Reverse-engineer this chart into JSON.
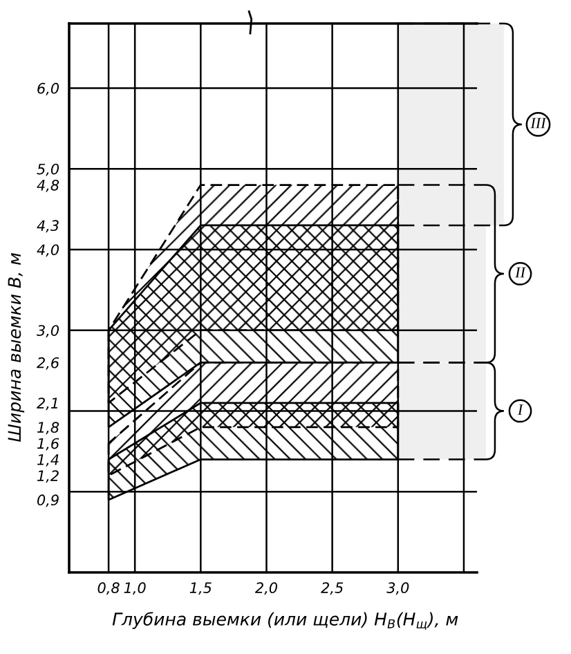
{
  "chart_data": {
    "type": "line",
    "xlabel": "Глубина выемки (или щели) H$_{В}$(H$_{щ}$), м",
    "ylabel": "Ширина выемки B, м",
    "xlim": [
      0.5,
      3.6
    ],
    "ylim": [
      0,
      6.8
    ],
    "xticks": [
      {
        "value": 0.8,
        "label": "0,8"
      },
      {
        "value": 1.0,
        "label": "1,0"
      },
      {
        "value": 1.5,
        "label": "1,5"
      },
      {
        "value": 2.0,
        "label": "2,0"
      },
      {
        "value": 2.5,
        "label": "2,5"
      },
      {
        "value": 3.0,
        "label": "3,0"
      },
      {
        "value": 3.5,
        "label": null
      }
    ],
    "yticks": [
      {
        "value": 0.9,
        "label": "0,9"
      },
      {
        "value": 1.2,
        "label": "1,2"
      },
      {
        "value": 1.4,
        "label": "1,4"
      },
      {
        "value": 1.6,
        "label": "1,6"
      },
      {
        "value": 1.8,
        "label": "1,8"
      },
      {
        "value": 2.1,
        "label": "2,1"
      },
      {
        "value": 2.6,
        "label": "2,6"
      },
      {
        "value": 3.0,
        "label": "3,0"
      },
      {
        "value": 4.0,
        "label": "4,0"
      },
      {
        "value": 4.3,
        "label": "4,3"
      },
      {
        "value": 4.8,
        "label": "4,8"
      },
      {
        "value": 5.0,
        "label": "5,0"
      },
      {
        "value": 6.0,
        "label": "6,0"
      }
    ],
    "grid": "x",
    "ref_lines": [
      {
        "axis": "y",
        "value": 1.0
      },
      {
        "axis": "y",
        "value": 2.0
      },
      {
        "axis": "y",
        "value": 3.0
      },
      {
        "axis": "y",
        "value": 4.0
      },
      {
        "axis": "y",
        "value": 5.0
      },
      {
        "axis": "y",
        "value": 6.0
      }
    ],
    "bands": [
      {
        "axis": "y",
        "from": 1.4,
        "to": 2.6,
        "label": "I",
        "color": "#efefef"
      },
      {
        "axis": "y",
        "from": 2.6,
        "to": 4.8,
        "label": "II",
        "color": "#efefef"
      },
      {
        "axis": "y",
        "from": 4.3,
        "to": 6.8,
        "label": "III",
        "color": "#efefef"
      }
    ],
    "series": [
      {
        "color": "#000000",
        "line_style": "solid",
        "x": [
          0.8,
          1.5,
          3.0
        ],
        "values": [
          null,
          null,
          null
        ],
        "lower": [
          0.9,
          1.4,
          1.4
        ],
        "upper": [
          1.4,
          2.1,
          2.1
        ]
      },
      {
        "color": "#000000",
        "line_style": "dashed",
        "x": [
          0.8,
          1.5,
          3.0
        ],
        "values": [
          null,
          null,
          null
        ],
        "lower": [
          1.2,
          1.8,
          1.8
        ],
        "upper": [
          1.6,
          2.6,
          2.6
        ]
      },
      {
        "color": "#000000",
        "line_style": "solid",
        "x": [
          0.8,
          1.5,
          3.0
        ],
        "values": [
          null,
          null,
          null
        ],
        "lower": [
          1.8,
          2.6,
          2.6
        ],
        "upper": [
          3.0,
          4.3,
          4.3
        ]
      },
      {
        "color": "#000000",
        "line_style": "dashed",
        "x": [
          0.8,
          1.5,
          3.0
        ],
        "values": [
          null,
          null,
          null
        ],
        "lower": [
          2.1,
          3.0,
          3.0
        ],
        "upper": [
          3.0,
          4.8,
          4.8
        ]
      }
    ]
  }
}
